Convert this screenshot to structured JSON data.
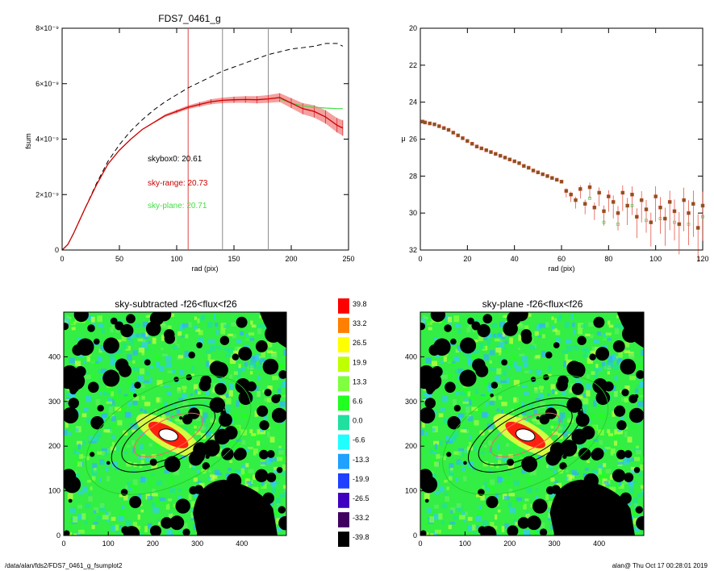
{
  "footer": {
    "left": "/data/alan/fds2/FDS7_0461_g_fsumplot2",
    "right": "alan@  Thu Oct 17 00:28:01 2019"
  },
  "colors": {
    "profile": "#cc0000",
    "band": "#f5a0a0",
    "plane": "#44dd44",
    "box": "#000000",
    "marker_red": "#e04030",
    "marker_green": "#40c040"
  },
  "chart_data": [
    {
      "type": "line",
      "title": "FDS7_0461_g",
      "xlabel": "rad (pix)",
      "ylabel": "fsum",
      "xlim": [
        0,
        250
      ],
      "ylim": [
        0,
        8
      ],
      "xticks": [
        "0",
        "50",
        "100",
        "150",
        "200",
        "250"
      ],
      "yticks": [
        "0",
        "2×10⁻⁹",
        "4×10⁻⁹",
        "6×10⁻⁹",
        "8×10⁻⁹"
      ],
      "vlines": [
        110,
        140,
        180
      ],
      "annotations": [
        {
          "text": "skybox0: 20.61",
          "color": "#000000"
        },
        {
          "text": "sky-range: 20.73",
          "color": "#cc0000"
        },
        {
          "text": "sky-plane: 20.71",
          "color": "#44dd44"
        }
      ],
      "series": [
        {
          "style": "dashed",
          "x": [
            0,
            5,
            10,
            20,
            30,
            40,
            50,
            60,
            70,
            80,
            90,
            100,
            110,
            120,
            130,
            140,
            150,
            160,
            170,
            180,
            190,
            200,
            210,
            220,
            230,
            240,
            245
          ],
          "y": [
            0,
            0.2,
            0.6,
            1.5,
            2.4,
            3.2,
            3.8,
            4.3,
            4.7,
            5.05,
            5.35,
            5.6,
            5.85,
            6.05,
            6.25,
            6.45,
            6.6,
            6.75,
            6.9,
            7.05,
            7.15,
            7.25,
            7.3,
            7.35,
            7.45,
            7.45,
            7.35
          ]
        },
        {
          "style": "solid-red",
          "x": [
            0,
            5,
            10,
            20,
            30,
            40,
            50,
            60,
            70,
            80,
            90,
            100,
            110,
            120,
            130,
            140,
            150,
            160,
            170,
            180,
            190,
            200,
            210,
            220,
            230,
            240,
            245
          ],
          "y": [
            0,
            0.2,
            0.6,
            1.5,
            2.35,
            3.1,
            3.6,
            4.0,
            4.35,
            4.6,
            4.85,
            5.0,
            5.15,
            5.25,
            5.35,
            5.4,
            5.42,
            5.43,
            5.42,
            5.45,
            5.5,
            5.3,
            5.1,
            5.0,
            4.8,
            4.5,
            4.4
          ],
          "err": [
            0,
            0,
            0,
            0,
            0,
            0,
            0,
            0,
            0.02,
            0.03,
            0.05,
            0.06,
            0.07,
            0.08,
            0.09,
            0.1,
            0.11,
            0.12,
            0.13,
            0.14,
            0.16,
            0.18,
            0.2,
            0.22,
            0.24,
            0.26,
            0.28
          ]
        },
        {
          "style": "solid-green",
          "x": [
            190,
            200,
            210,
            220,
            230,
            240,
            245
          ],
          "y": [
            5.45,
            5.3,
            5.2,
            5.15,
            5.12,
            5.1,
            5.1
          ]
        }
      ]
    },
    {
      "type": "scatter",
      "xlabel": "rad (pix)",
      "ylabel": "μ",
      "xlim": [
        0,
        120
      ],
      "ylim": [
        32,
        20
      ],
      "xticks": [
        "0",
        "20",
        "40",
        "60",
        "80",
        "100",
        "120"
      ],
      "yticks": [
        "20",
        "22",
        "24",
        "26",
        "28",
        "30",
        "32"
      ],
      "points": [
        [
          1,
          25.05
        ],
        [
          2,
          25.1
        ],
        [
          4,
          25.15
        ],
        [
          6,
          25.2
        ],
        [
          8,
          25.3
        ],
        [
          10,
          25.4
        ],
        [
          12,
          25.5
        ],
        [
          14,
          25.65
        ],
        [
          16,
          25.8
        ],
        [
          18,
          25.95
        ],
        [
          20,
          26.1
        ],
        [
          22,
          26.25
        ],
        [
          24,
          26.4
        ],
        [
          26,
          26.5
        ],
        [
          28,
          26.6
        ],
        [
          30,
          26.7
        ],
        [
          32,
          26.8
        ],
        [
          34,
          26.9
        ],
        [
          36,
          27.0
        ],
        [
          38,
          27.1
        ],
        [
          40,
          27.2
        ],
        [
          42,
          27.3
        ],
        [
          44,
          27.45
        ],
        [
          46,
          27.55
        ],
        [
          48,
          27.7
        ],
        [
          50,
          27.8
        ],
        [
          52,
          27.9
        ],
        [
          54,
          28.0
        ],
        [
          56,
          28.1
        ],
        [
          58,
          28.2
        ],
        [
          60,
          28.3
        ],
        [
          62,
          28.8
        ],
        [
          64,
          29.0
        ],
        [
          66,
          29.3
        ],
        [
          68,
          28.7
        ],
        [
          70,
          29.5
        ],
        [
          72,
          28.6
        ],
        [
          74,
          29.7
        ],
        [
          76,
          28.9
        ],
        [
          78,
          29.9
        ],
        [
          80,
          29.1
        ],
        [
          82,
          29.4
        ],
        [
          84,
          30.0
        ],
        [
          86,
          28.9
        ],
        [
          88,
          29.6
        ],
        [
          90,
          29.0
        ],
        [
          92,
          30.2
        ],
        [
          94,
          29.3
        ],
        [
          96,
          29.8
        ],
        [
          98,
          30.5
        ],
        [
          100,
          29.1
        ],
        [
          102,
          29.7
        ],
        [
          104,
          30.3
        ],
        [
          106,
          29.4
        ],
        [
          108,
          29.9
        ],
        [
          110,
          30.6
        ],
        [
          112,
          29.3
        ],
        [
          114,
          30.0
        ],
        [
          116,
          29.5
        ],
        [
          118,
          30.8
        ],
        [
          120,
          29.6
        ]
      ]
    },
    {
      "type": "heatmap",
      "title": "sky-subtracted -f26<flux<f26",
      "xlim": [
        0,
        500
      ],
      "ylim": [
        0,
        500
      ],
      "xticks": [
        "0",
        "100",
        "200",
        "300",
        "400"
      ],
      "yticks": [
        "0",
        "100",
        "200",
        "300",
        "400"
      ]
    },
    {
      "type": "heatmap",
      "title": "sky-plane -f26<flux<f26",
      "xlim": [
        0,
        500
      ],
      "ylim": [
        0,
        500
      ],
      "xticks": [
        "0",
        "100",
        "200",
        "300",
        "400"
      ],
      "yticks": [
        "0",
        "100",
        "200",
        "300",
        "400"
      ]
    },
    {
      "type": "colorbar",
      "labels": [
        "39.8",
        "33.2",
        "26.5",
        "19.9",
        "13.3",
        "6.6",
        "0.0",
        "-6.6",
        "-13.3",
        "-19.9",
        "-26.5",
        "-33.2",
        "-39.8"
      ],
      "colors": [
        "#ff0000",
        "#ff8000",
        "#ffff00",
        "#c0ff00",
        "#80ff40",
        "#20ff20",
        "#20e0a0",
        "#20ffff",
        "#20a0ff",
        "#2040ff",
        "#4000c0",
        "#400060",
        "#000000"
      ]
    }
  ]
}
